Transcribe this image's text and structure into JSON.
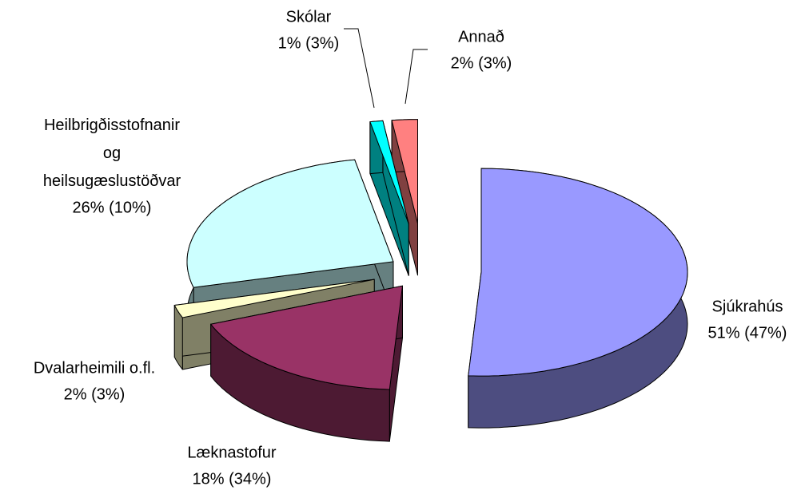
{
  "chart_data": {
    "type": "pie",
    "categories": [
      "Sjúkrahús",
      "Læknastofur",
      "Dvalarheimili o.fl.",
      "Heilbrigðisstofnanir og heilsugæslustöðvar",
      "Skólar",
      "Annað"
    ],
    "values": [
      51,
      18,
      2,
      26,
      1,
      2
    ],
    "value_labels": [
      "51% (47%)",
      "18% (34%)",
      "2% (3%)",
      "26% (10%)",
      "1% (3%)",
      "2% (3%)"
    ],
    "colors": [
      "#9999ff",
      "#993366",
      "#ffffcc",
      "#ccffff",
      "#00ffff",
      "#ff8080"
    ]
  }
}
